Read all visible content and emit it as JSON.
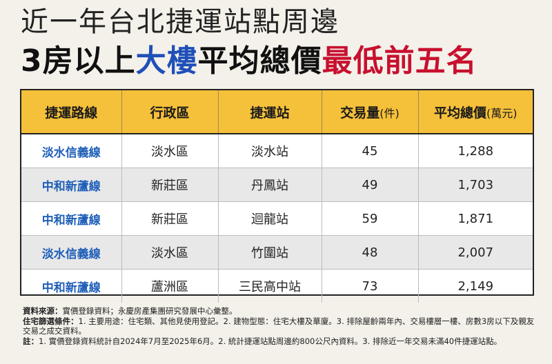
{
  "title": {
    "line1": "近一年台北捷運站點周邊",
    "line2_part1": "3房以上",
    "line2_part2": "大樓",
    "line2_part3": "平均總價",
    "line2_part4": "最低前五名"
  },
  "table": {
    "headers": [
      {
        "main": "捷運路線",
        "unit": ""
      },
      {
        "main": "行政區",
        "unit": ""
      },
      {
        "main": "捷運站",
        "unit": ""
      },
      {
        "main": "交易量",
        "unit": "(件)"
      },
      {
        "main": "平均總價",
        "unit": "(萬元)"
      }
    ],
    "rows": [
      [
        "淡水信義線",
        "淡水區",
        "淡水站",
        "45",
        "1,288"
      ],
      [
        "中和新蘆線",
        "新莊區",
        "丹鳳站",
        "49",
        "1,703"
      ],
      [
        "中和新蘆線",
        "新莊區",
        "迴龍站",
        "59",
        "1,871"
      ],
      [
        "淡水信義線",
        "淡水區",
        "竹圍站",
        "48",
        "2,007"
      ],
      [
        "中和新蘆線",
        "蘆洲區",
        "三民高中站",
        "73",
        "2,149"
      ]
    ]
  },
  "notes": {
    "source_label": "資料來源：",
    "source_text": "實價登錄資料；永慶房產集團研究發展中心彙整。",
    "filter_label": "住宅篩選條件：",
    "filter_text": "1. 主要用途：住宅類、其他見使用登記。2. 建物型態：住宅大樓及華廈。3. 排除屋齡兩年內、交易樓層一樓、房數3房以下及親友交易之成交資料。",
    "note_label": "註：",
    "note_text": "1. 實價登錄資料統計自2024年7月至2025年6月。2. 統計捷運站點周邊約800公尺內資料。3. 排除近一年交易未滿40件捷運站點。"
  },
  "colors": {
    "header_bg": "#f5c03a",
    "blue": "#1f4fb8",
    "red": "#c8102e",
    "line_text": "#1f5fb8"
  }
}
